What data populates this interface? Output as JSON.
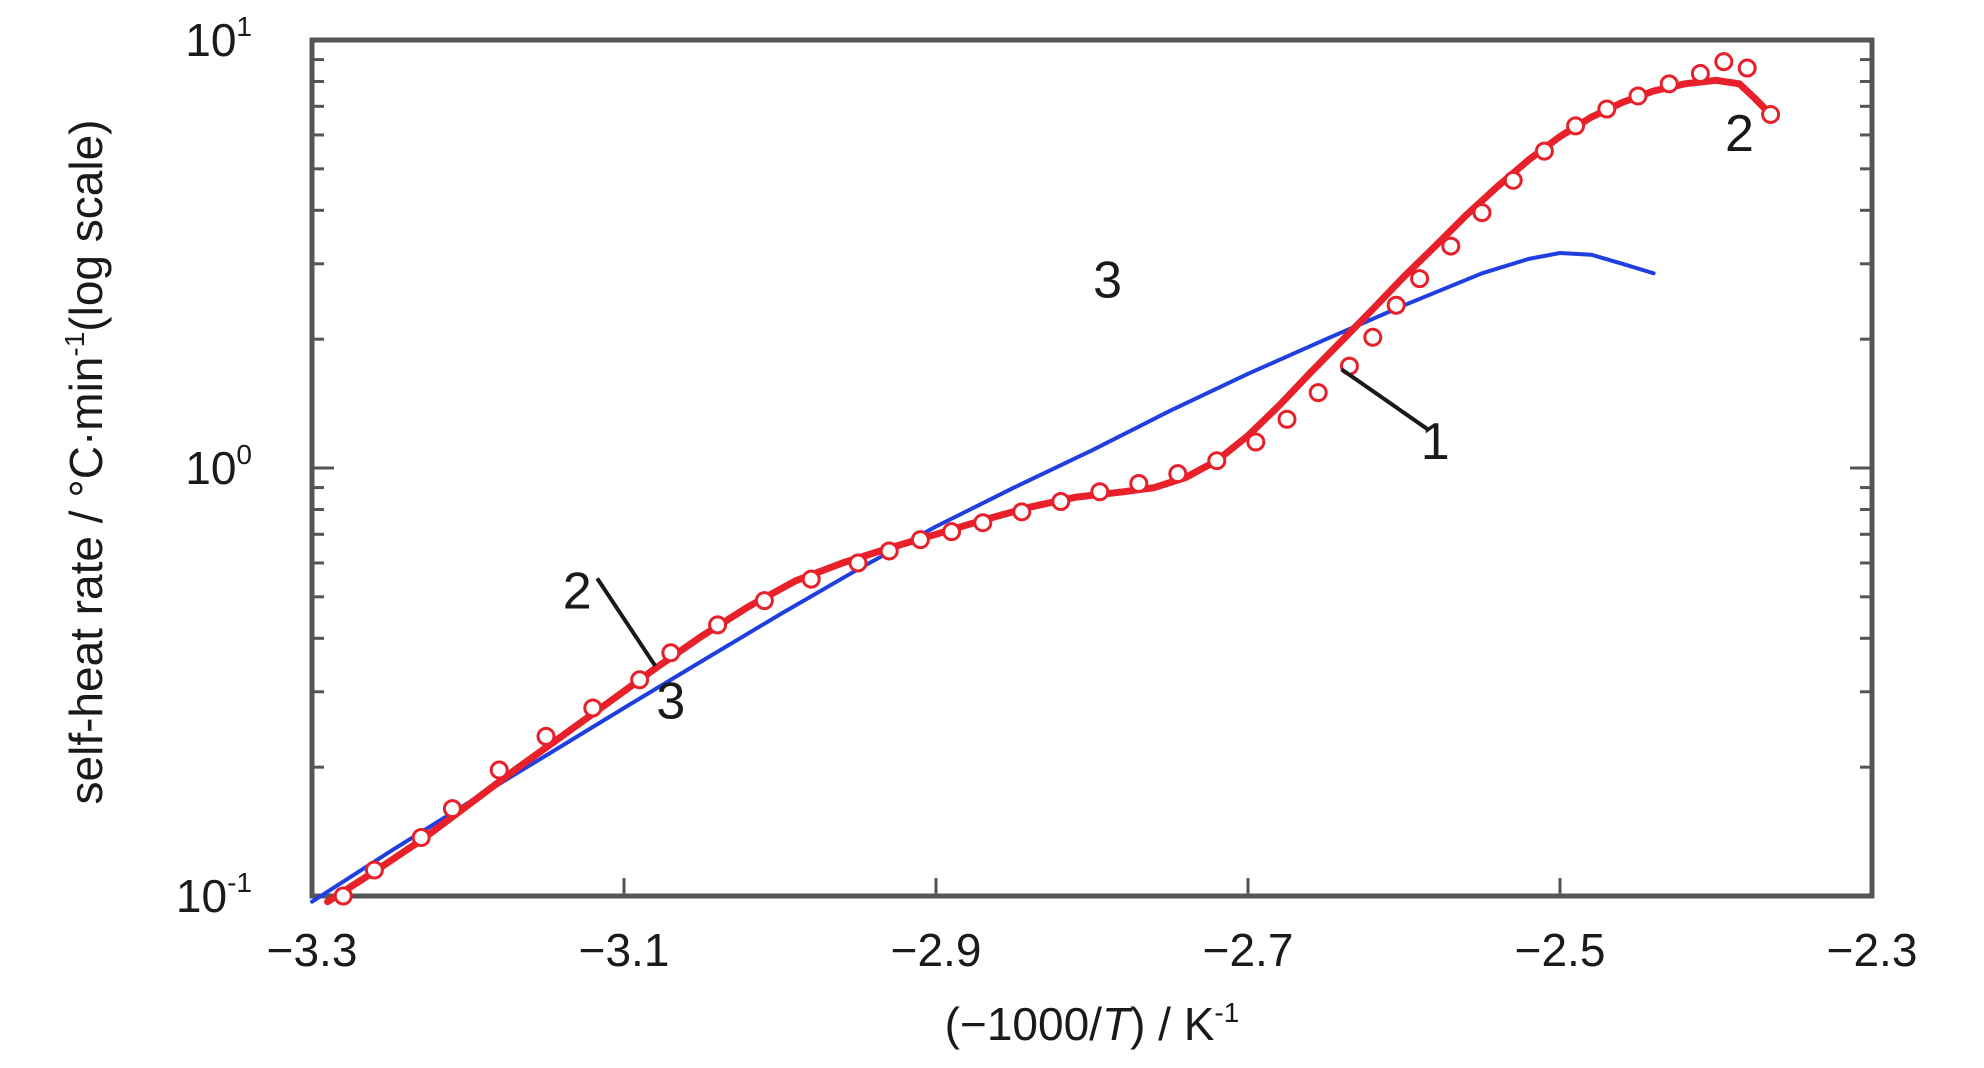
{
  "chart_data": {
    "type": "line",
    "xlabel": "(−1000/T) / K",
    "xlabel_parts": {
      "open": "(−1000/",
      "italic": "T",
      "close": ") / K",
      "sup": "-1"
    },
    "ylabel": "self-heat rate / °C·min-1(log scale)",
    "ylabel_parts": {
      "pre": "self-heat rate / °C·min",
      "sup": "-1",
      "post": "(log scale)"
    },
    "xlim": [
      -3.3,
      -2.3
    ],
    "ylim": [
      0.1,
      10
    ],
    "yscale": "log",
    "grid": false,
    "x_ticks": [
      -3.3,
      -3.1,
      -2.9,
      -2.7,
      -2.5,
      -2.3
    ],
    "x_tick_labels": [
      "−3.3",
      "−3.1",
      "−2.9",
      "−2.7",
      "−2.5",
      "−2.3"
    ],
    "y_ticks": [
      {
        "value": 0.1,
        "base": "10",
        "exp": "-1"
      },
      {
        "value": 1,
        "base": "10",
        "exp": "0"
      },
      {
        "value": 10,
        "base": "10",
        "exp": "1"
      }
    ],
    "series": [
      {
        "label": "1",
        "color": "#e8202a",
        "marker": "open-circle",
        "line": false,
        "points": [
          [
            -3.28,
            0.1
          ],
          [
            -3.26,
            0.115
          ],
          [
            -3.23,
            0.137
          ],
          [
            -3.21,
            0.16
          ],
          [
            -3.18,
            0.197
          ],
          [
            -3.15,
            0.236
          ],
          [
            -3.12,
            0.275
          ],
          [
            -3.09,
            0.32
          ],
          [
            -3.07,
            0.37
          ],
          [
            -3.04,
            0.43
          ],
          [
            -3.01,
            0.49
          ],
          [
            -2.98,
            0.55
          ],
          [
            -2.95,
            0.6
          ],
          [
            -2.93,
            0.64
          ],
          [
            -2.91,
            0.68
          ],
          [
            -2.89,
            0.71
          ],
          [
            -2.87,
            0.745
          ],
          [
            -2.845,
            0.79
          ],
          [
            -2.82,
            0.835
          ],
          [
            -2.795,
            0.88
          ],
          [
            -2.77,
            0.92
          ],
          [
            -2.745,
            0.97
          ],
          [
            -2.72,
            1.04
          ],
          [
            -2.695,
            1.15
          ],
          [
            -2.675,
            1.3
          ],
          [
            -2.655,
            1.5
          ],
          [
            -2.635,
            1.73
          ],
          [
            -2.62,
            2.02
          ],
          [
            -2.605,
            2.4
          ],
          [
            -2.59,
            2.77
          ],
          [
            -2.57,
            3.3
          ],
          [
            -2.55,
            3.95
          ],
          [
            -2.53,
            4.7
          ],
          [
            -2.51,
            5.5
          ],
          [
            -2.49,
            6.3
          ],
          [
            -2.47,
            6.9
          ],
          [
            -2.45,
            7.4
          ],
          [
            -2.43,
            7.9
          ],
          [
            -2.41,
            8.35
          ],
          [
            -2.395,
            8.9
          ],
          [
            -2.38,
            8.6
          ],
          [
            -2.365,
            6.7
          ]
        ]
      },
      {
        "label": "2",
        "color": "#e8202a",
        "marker": "none",
        "line": true,
        "line_width": 7,
        "points": [
          [
            -3.29,
            0.097
          ],
          [
            -3.26,
            0.114
          ],
          [
            -3.23,
            0.135
          ],
          [
            -3.2,
            0.163
          ],
          [
            -3.17,
            0.197
          ],
          [
            -3.14,
            0.236
          ],
          [
            -3.11,
            0.283
          ],
          [
            -3.08,
            0.34
          ],
          [
            -3.05,
            0.405
          ],
          [
            -3.02,
            0.475
          ],
          [
            -2.99,
            0.545
          ],
          [
            -2.96,
            0.6
          ],
          [
            -2.93,
            0.65
          ],
          [
            -2.9,
            0.7
          ],
          [
            -2.87,
            0.755
          ],
          [
            -2.84,
            0.81
          ],
          [
            -2.81,
            0.855
          ],
          [
            -2.78,
            0.88
          ],
          [
            -2.76,
            0.9
          ],
          [
            -2.74,
            0.95
          ],
          [
            -2.72,
            1.04
          ],
          [
            -2.7,
            1.19
          ],
          [
            -2.68,
            1.4
          ],
          [
            -2.66,
            1.67
          ],
          [
            -2.64,
            1.98
          ],
          [
            -2.62,
            2.35
          ],
          [
            -2.6,
            2.8
          ],
          [
            -2.58,
            3.3
          ],
          [
            -2.56,
            3.9
          ],
          [
            -2.54,
            4.55
          ],
          [
            -2.52,
            5.25
          ],
          [
            -2.5,
            5.95
          ],
          [
            -2.48,
            6.6
          ],
          [
            -2.46,
            7.15
          ],
          [
            -2.44,
            7.6
          ],
          [
            -2.42,
            7.9
          ],
          [
            -2.4,
            8.05
          ],
          [
            -2.385,
            7.9
          ],
          [
            -2.375,
            7.3
          ],
          [
            -2.365,
            6.7
          ]
        ]
      },
      {
        "label": "3",
        "color": "#1f3fe0",
        "marker": "none",
        "line": true,
        "line_width": 4,
        "points": [
          [
            -3.3,
            0.097
          ],
          [
            -3.25,
            0.127
          ],
          [
            -3.2,
            0.165
          ],
          [
            -3.15,
            0.213
          ],
          [
            -3.1,
            0.275
          ],
          [
            -3.05,
            0.354
          ],
          [
            -3.0,
            0.455
          ],
          [
            -2.95,
            0.58
          ],
          [
            -2.9,
            0.73
          ],
          [
            -2.85,
            0.9
          ],
          [
            -2.8,
            1.1
          ],
          [
            -2.75,
            1.36
          ],
          [
            -2.7,
            1.66
          ],
          [
            -2.65,
            2.0
          ],
          [
            -2.6,
            2.4
          ],
          [
            -2.55,
            2.85
          ],
          [
            -2.52,
            3.08
          ],
          [
            -2.5,
            3.18
          ],
          [
            -2.48,
            3.15
          ],
          [
            -2.46,
            3.0
          ],
          [
            -2.44,
            2.85
          ]
        ]
      }
    ],
    "annotations": [
      {
        "text": "1",
        "x": -2.58,
        "y": 1.05,
        "line_to": [
          -2.64,
          1.7
        ]
      },
      {
        "text": "2",
        "x": -3.13,
        "y": 0.47,
        "line_to": [
          -3.08,
          0.345
        ]
      },
      {
        "text": "3",
        "x": -3.07,
        "y": 0.26
      },
      {
        "text": "3",
        "x": -2.79,
        "y": 2.5
      },
      {
        "text": "2",
        "x": -2.385,
        "y": 5.5
      }
    ]
  }
}
